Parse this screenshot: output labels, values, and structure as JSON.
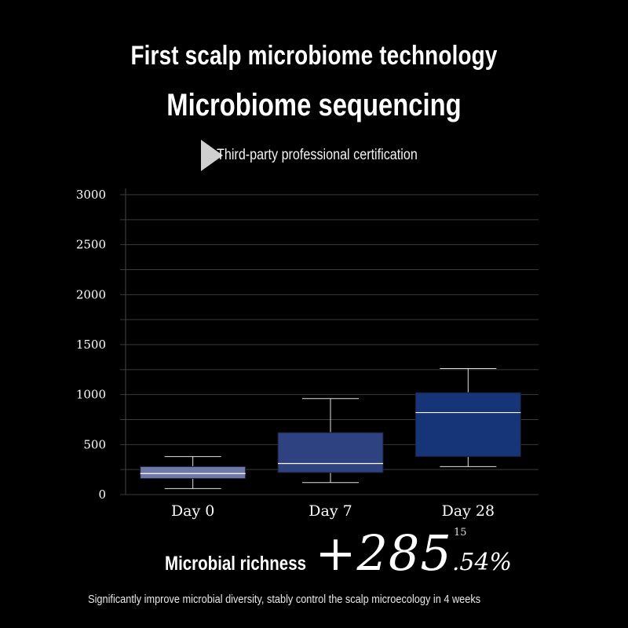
{
  "header": {
    "title": "First scalp microbiome technology",
    "subtitle": "Microbiome sequencing",
    "certification": "Third-party professional certification",
    "certification_icon": "arrow-marker-icon"
  },
  "chart_data": {
    "type": "boxplot",
    "title": "",
    "xlabel": "",
    "ylabel": "",
    "categories": [
      "Day 0",
      "Day 7",
      "Day 28"
    ],
    "boxes": [
      {
        "category": "Day 0",
        "min": 60,
        "q1": 160,
        "median": 210,
        "q3": 280,
        "max": 380,
        "color": "#6f79a8"
      },
      {
        "category": "Day 7",
        "min": 120,
        "q1": 220,
        "median": 310,
        "q3": 620,
        "max": 960,
        "color": "#2e4282"
      },
      {
        "category": "Day 28",
        "min": 280,
        "q1": 380,
        "median": 820,
        "q3": 1020,
        "max": 1260,
        "color": "#163478"
      }
    ],
    "yticks": [
      0,
      500,
      1000,
      1500,
      2000,
      2500,
      3000
    ],
    "ylim": [
      0,
      3000
    ],
    "grid": true
  },
  "result": {
    "label": "Microbial richness",
    "value": "+285",
    "decimal": ".54%",
    "footnote": "15"
  },
  "footer": {
    "text": "Significantly improve microbial diversity, stably control the scalp microecology in 4 weeks"
  }
}
